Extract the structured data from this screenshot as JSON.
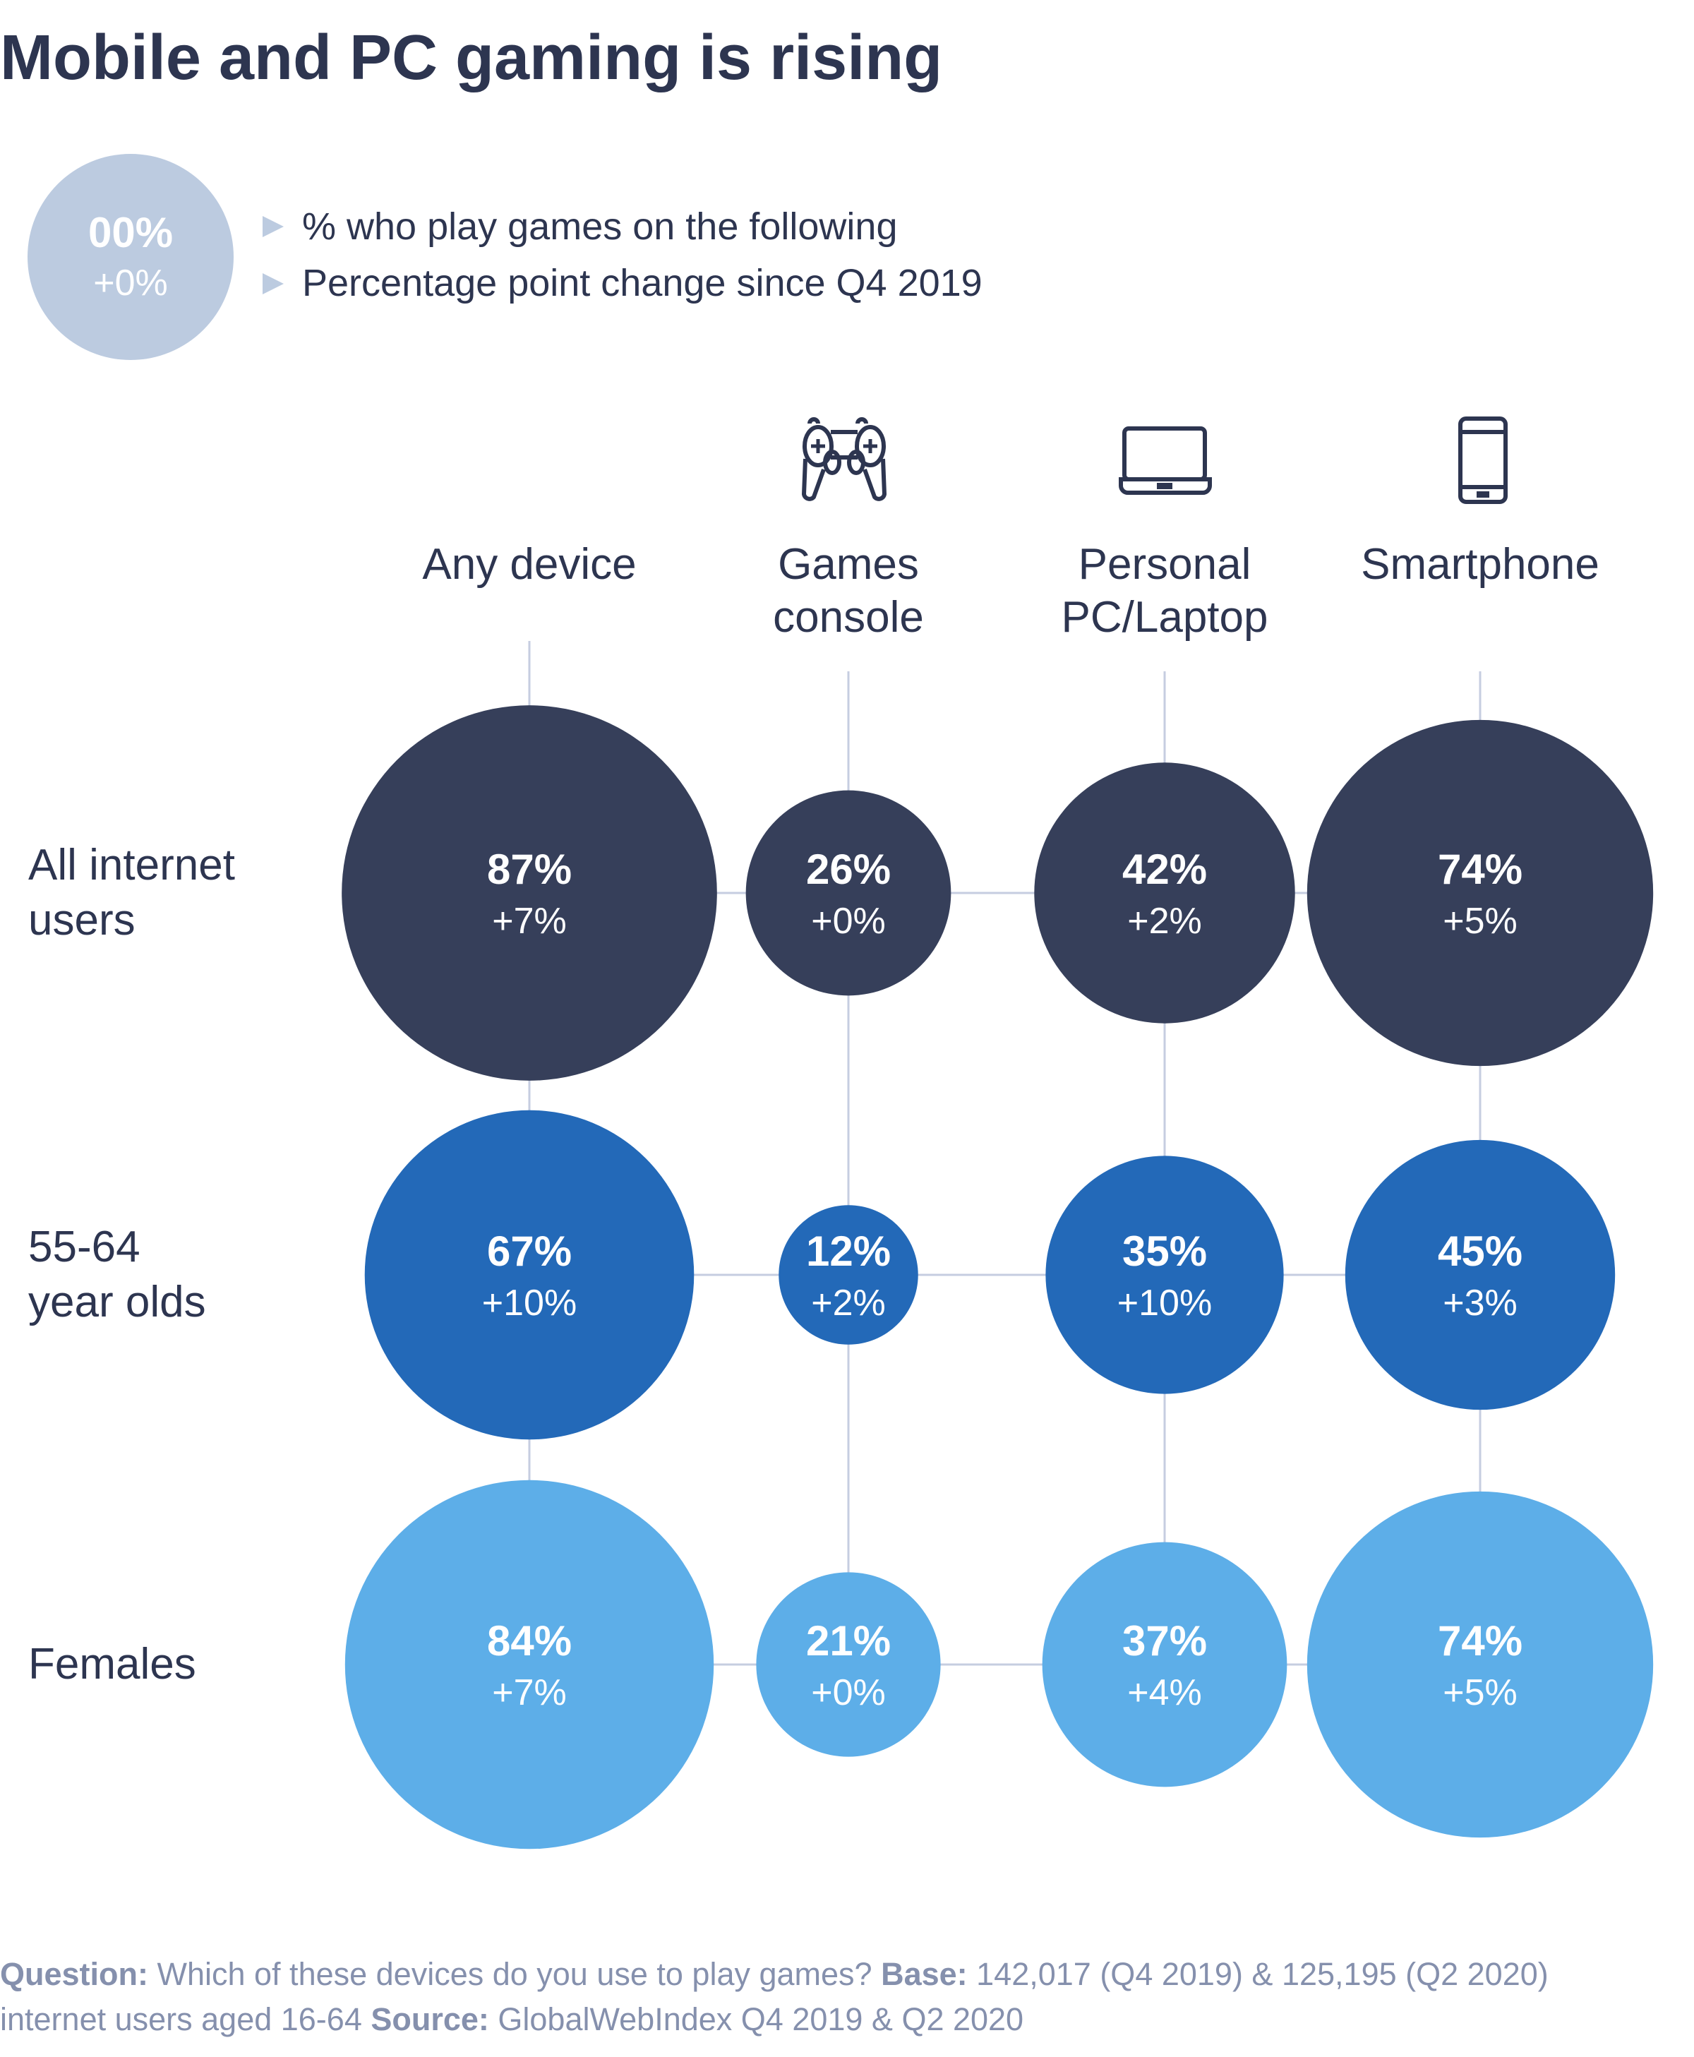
{
  "title": "Mobile and PC gaming is rising",
  "legend": {
    "sample_value": "00%",
    "sample_change": "+0%",
    "items": [
      "% who play games on the following",
      "Percentage point change since Q4 2019"
    ]
  },
  "colors": {
    "All internet users": "#363f5a",
    "55-64 year olds": "#2369b8",
    "Females": "#5daee8",
    "legend_circle": "#bccbe0",
    "grid_line": "#c6cde0",
    "icon": "#2d3550"
  },
  "chart_data": {
    "type": "bubble-grid",
    "title": "Mobile and PC gaming is rising",
    "columns": [
      {
        "label": [
          "Any device"
        ],
        "icon": ""
      },
      {
        "label": [
          "Games",
          "console"
        ],
        "icon": "gamepad-icon"
      },
      {
        "label": [
          "Personal",
          "PC/Laptop"
        ],
        "icon": "laptop-icon"
      },
      {
        "label": [
          "Smartphone"
        ],
        "icon": "smartphone-icon"
      }
    ],
    "rows": [
      {
        "label": [
          "All internet",
          "users"
        ],
        "values": [
          87,
          26,
          42,
          74
        ],
        "changes": [
          "+7%",
          "+0%",
          "+2%",
          "+5%"
        ]
      },
      {
        "label": [
          "55-64",
          "year olds"
        ],
        "values": [
          67,
          12,
          35,
          45
        ],
        "changes": [
          "+10%",
          "+2%",
          "+10%",
          "+3%"
        ]
      },
      {
        "label": [
          "Females"
        ],
        "values": [
          84,
          21,
          37,
          74
        ],
        "changes": [
          "+7%",
          "+0%",
          "+4%",
          "+5%"
        ]
      }
    ],
    "unit": "%"
  },
  "footer": {
    "question_label": "Question:",
    "question_text": " Which of these devices do you use to play games? ",
    "base_label": "Base:",
    "base_text": " 142,017 (Q4 2019) & 125,195 (Q2 2020)",
    "line2_text": "internet users aged 16-64 ",
    "source_label": "Source:",
    "source_text": " GlobalWebIndex Q4 2019 & Q2 2020"
  }
}
